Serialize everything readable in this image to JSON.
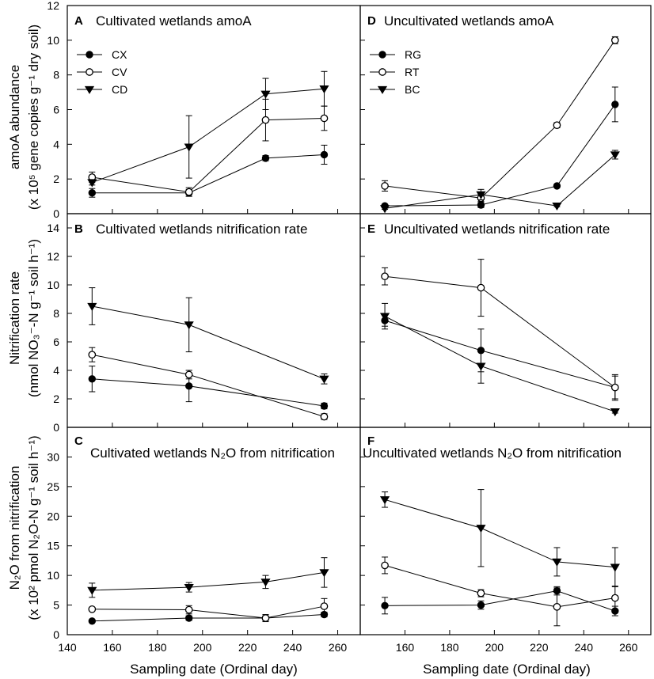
{
  "x_axis": {
    "label": "Sampling date (Ordinal day)",
    "ticks": [
      140,
      160,
      180,
      200,
      220,
      240,
      260
    ],
    "range": [
      140,
      270
    ]
  },
  "y_axis_titles": {
    "row1_line1": "amoA abundance",
    "row1_line2": "(x 10⁵ gene copies g⁻¹ dry soil)",
    "row2_line1": "Nitrification rate",
    "row2_line2": "(nmol NO₃⁻-N g⁻¹ soil h⁻¹)",
    "row3_line1": "N₂O from nitrification",
    "row3_line2": "(x 10² pmol N₂O-N g⁻¹ soil h⁻¹)"
  },
  "chart_data": [
    {
      "id": "A",
      "type": "line",
      "letter": "A",
      "title": "Cultivated wetlands amoA",
      "ylim": [
        0,
        12
      ],
      "yticks": [
        0,
        2,
        4,
        6,
        8,
        10,
        12
      ],
      "legend": true,
      "x": [
        151,
        194,
        228,
        254
      ],
      "series": [
        {
          "name": "CX",
          "marker": "filled-circle",
          "values": [
            1.2,
            1.2,
            3.2,
            3.4
          ],
          "errors": [
            0.25,
            0.2,
            0.15,
            0.55
          ]
        },
        {
          "name": "CV",
          "marker": "open-circle",
          "values": [
            2.1,
            1.25,
            5.4,
            5.5
          ],
          "errors": [
            0.3,
            0.25,
            1.2,
            0.7
          ]
        },
        {
          "name": "CD",
          "marker": "filled-triangle",
          "values": [
            1.8,
            3.85,
            6.9,
            7.2
          ],
          "errors": [
            0.15,
            1.8,
            0.9,
            1.0
          ]
        }
      ]
    },
    {
      "id": "D",
      "type": "line",
      "letter": "D",
      "title": "Uncultivated wetlands amoA",
      "ylim": [
        0,
        12
      ],
      "yticks": [
        0,
        2,
        4,
        6,
        8,
        10,
        12
      ],
      "legend": true,
      "x": [
        151,
        194,
        228,
        254
      ],
      "series": [
        {
          "name": "RG",
          "marker": "filled-circle",
          "values": [
            0.45,
            0.5,
            1.6,
            6.3
          ],
          "errors": [
            0.1,
            0.15,
            0.1,
            1.0
          ]
        },
        {
          "name": "RT",
          "marker": "open-circle",
          "values": [
            1.6,
            0.9,
            5.1,
            10.0
          ],
          "errors": [
            0.3,
            0.2,
            0.15,
            0.2
          ]
        },
        {
          "name": "BC",
          "marker": "filled-triangle",
          "values": [
            0.3,
            1.1,
            0.45,
            3.4
          ],
          "errors": [
            0.05,
            0.3,
            0.05,
            0.25
          ]
        }
      ]
    },
    {
      "id": "B",
      "type": "line",
      "letter": "B",
      "title": "Cultivated wetlands nitrification rate",
      "ylim": [
        0,
        15
      ],
      "yticks": [
        0,
        2,
        4,
        6,
        8,
        10,
        12,
        14
      ],
      "legend": false,
      "x": [
        151,
        194,
        254
      ],
      "series": [
        {
          "name": "CX",
          "marker": "filled-circle",
          "values": [
            3.4,
            2.9,
            1.5
          ],
          "errors": [
            0.9,
            1.1,
            0.2
          ]
        },
        {
          "name": "CV",
          "marker": "open-circle",
          "values": [
            5.1,
            3.7,
            0.75
          ],
          "errors": [
            0.5,
            0.3,
            0.2
          ]
        },
        {
          "name": "CD",
          "marker": "filled-triangle",
          "values": [
            8.5,
            7.2,
            3.4
          ],
          "errors": [
            1.3,
            1.9,
            0.35
          ]
        }
      ]
    },
    {
      "id": "E",
      "type": "line",
      "letter": "E",
      "title": "Uncultivated wetlands nitrification rate",
      "ylim": [
        0,
        15
      ],
      "yticks": [
        0,
        2,
        4,
        6,
        8,
        10,
        12,
        14
      ],
      "legend": false,
      "x": [
        151,
        194,
        254
      ],
      "series": [
        {
          "name": "RG",
          "marker": "filled-circle",
          "values": [
            7.5,
            5.4,
            2.8
          ],
          "errors": [
            0.4,
            1.5,
            0.8
          ]
        },
        {
          "name": "RT",
          "marker": "open-circle",
          "values": [
            10.6,
            9.8,
            2.8
          ],
          "errors": [
            0.6,
            2.0,
            0.9
          ]
        },
        {
          "name": "BC",
          "marker": "filled-triangle",
          "values": [
            7.8,
            4.3,
            1.1
          ],
          "errors": [
            0.9,
            1.2,
            0.1
          ]
        }
      ]
    },
    {
      "id": "C",
      "type": "line",
      "letter": "C",
      "title": "Cultivated wetlands N₂O from nitrification",
      "ylim": [
        0,
        35
      ],
      "yticks": [
        0,
        5,
        10,
        15,
        20,
        25,
        30
      ],
      "legend": false,
      "x": [
        151,
        194,
        228,
        254
      ],
      "series": [
        {
          "name": "CX",
          "marker": "filled-circle",
          "values": [
            2.3,
            2.8,
            2.8,
            3.4
          ],
          "errors": [
            0.2,
            0.4,
            0.4,
            0.4
          ]
        },
        {
          "name": "CV",
          "marker": "open-circle",
          "values": [
            4.3,
            4.2,
            2.8,
            4.8
          ],
          "errors": [
            0.3,
            0.7,
            0.6,
            1.3
          ]
        },
        {
          "name": "CD",
          "marker": "filled-triangle",
          "values": [
            7.5,
            8.0,
            8.9,
            10.5
          ],
          "errors": [
            1.2,
            0.8,
            1.1,
            2.5
          ]
        }
      ]
    },
    {
      "id": "F",
      "type": "line",
      "letter": "F",
      "title": "Uncultivated wetlands N₂O from nitrification",
      "ylim": [
        0,
        35
      ],
      "yticks": [
        0,
        5,
        10,
        15,
        20,
        25,
        30
      ],
      "legend": false,
      "x": [
        151,
        194,
        228,
        254
      ],
      "series": [
        {
          "name": "RG",
          "marker": "filled-circle",
          "values": [
            4.9,
            5.0,
            7.4,
            4.0
          ],
          "errors": [
            1.4,
            0.7,
            0.7,
            0.8
          ]
        },
        {
          "name": "RT",
          "marker": "open-circle",
          "values": [
            11.7,
            7.0,
            4.7,
            6.2
          ],
          "errors": [
            1.4,
            0.6,
            3.2,
            2.0
          ]
        },
        {
          "name": "BC",
          "marker": "filled-triangle",
          "values": [
            22.8,
            18.0,
            12.3,
            11.4
          ],
          "errors": [
            1.3,
            6.5,
            2.4,
            3.3
          ]
        }
      ]
    }
  ]
}
